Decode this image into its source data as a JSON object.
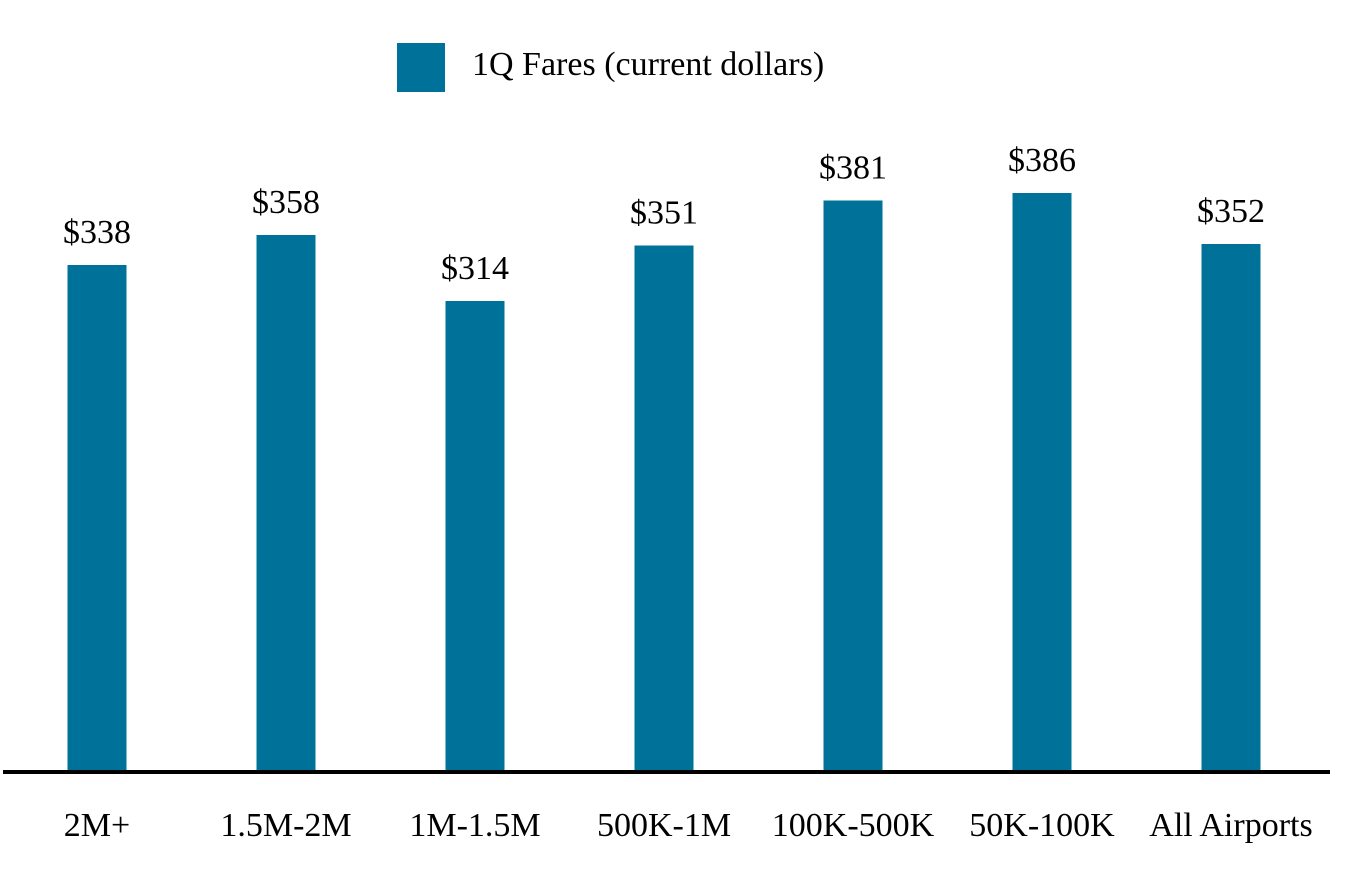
{
  "chart_data": {
    "type": "bar",
    "categories": [
      "2M+",
      "1.5M-2M",
      "1M-1.5M",
      "500K-1M",
      "100K-500K",
      "50K-100K",
      "All Airports"
    ],
    "series": [
      {
        "name": "1Q Fares (current dollars)",
        "values": [
          338,
          358,
          314,
          351,
          381,
          386,
          352
        ],
        "labels": [
          "$338",
          "$358",
          "$314",
          "$351",
          "$381",
          "$386",
          "$352"
        ],
        "color": "#00729a"
      }
    ],
    "ylim": [
      0,
      386
    ],
    "grid": false,
    "legend_position": "top-center",
    "axis_color": "#000000"
  }
}
